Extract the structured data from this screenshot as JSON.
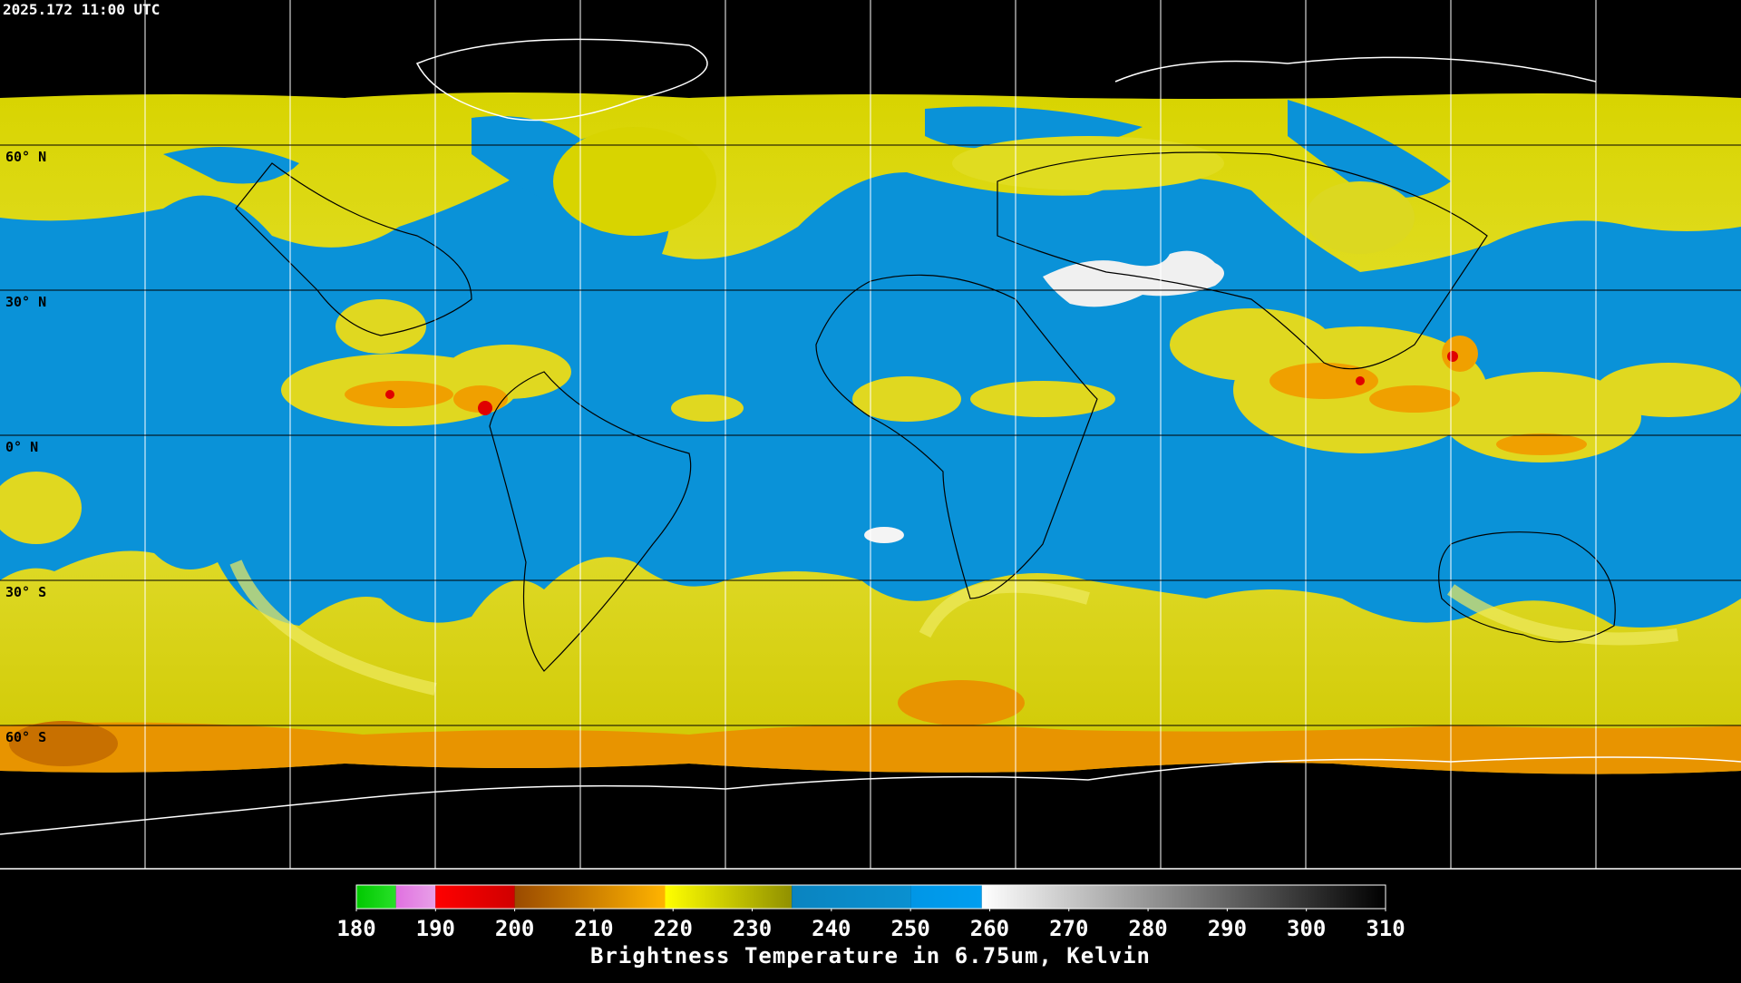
{
  "header": {
    "timestamp": "2025.172 11:00 UTC"
  },
  "map": {
    "lat_labels": [
      "60° N",
      "30° N",
      "0° N",
      "30° S",
      "60° S"
    ]
  },
  "colorbar": {
    "label": "Brightness Temperature in 6.75um, Kelvin",
    "lim": [
      180,
      310
    ],
    "ticks": [
      180,
      190,
      200,
      210,
      220,
      230,
      240,
      250,
      260,
      270,
      280,
      290,
      300,
      310
    ],
    "segments": [
      {
        "from": 180,
        "to": 185,
        "colors": [
          "#00c800",
          "#28e028"
        ]
      },
      {
        "from": 185,
        "to": 190,
        "colors": [
          "#e070e0",
          "#e8a0e8"
        ]
      },
      {
        "from": 190,
        "to": 200,
        "colors": [
          "#ff0000",
          "#d00000"
        ]
      },
      {
        "from": 200,
        "to": 219,
        "colors": [
          "#9a4a00",
          "#ffb400"
        ]
      },
      {
        "from": 219,
        "to": 235,
        "colors": [
          "#ffff00",
          "#909000"
        ]
      },
      {
        "from": 235,
        "to": 250,
        "colors": [
          "#0a84c0",
          "#0a90d0"
        ]
      },
      {
        "from": 250,
        "to": 259,
        "colors": [
          "#0096e6",
          "#009ef0"
        ]
      },
      {
        "from": 259,
        "to": 310,
        "colors": [
          "#ffffff",
          "#000000"
        ]
      }
    ]
  }
}
